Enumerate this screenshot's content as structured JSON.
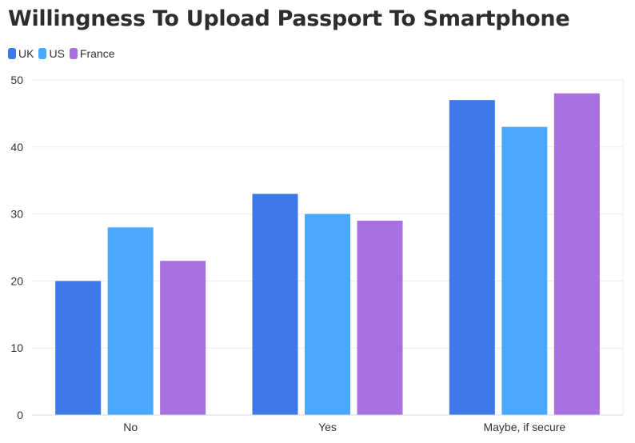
{
  "title": "Willingness To Upload Passport To Smartphone",
  "chart_data": {
    "type": "bar",
    "title": "Willingness To Upload Passport To Smartphone",
    "xlabel": "",
    "ylabel": "",
    "categories": [
      "No",
      "Yes",
      "Maybe, if secure"
    ],
    "series": [
      {
        "name": "UK",
        "values": [
          20,
          33,
          47
        ],
        "color": "#3d7ae8"
      },
      {
        "name": "US",
        "values": [
          28,
          30,
          43
        ],
        "color": "#4aa8ff"
      },
      {
        "name": "France",
        "values": [
          23,
          29,
          48
        ],
        "color": "#a970e0"
      }
    ],
    "ylim": [
      0,
      50
    ],
    "yticks": [
      0,
      10,
      20,
      30,
      40,
      50
    ],
    "grid": true,
    "legend_position": "top-left"
  }
}
